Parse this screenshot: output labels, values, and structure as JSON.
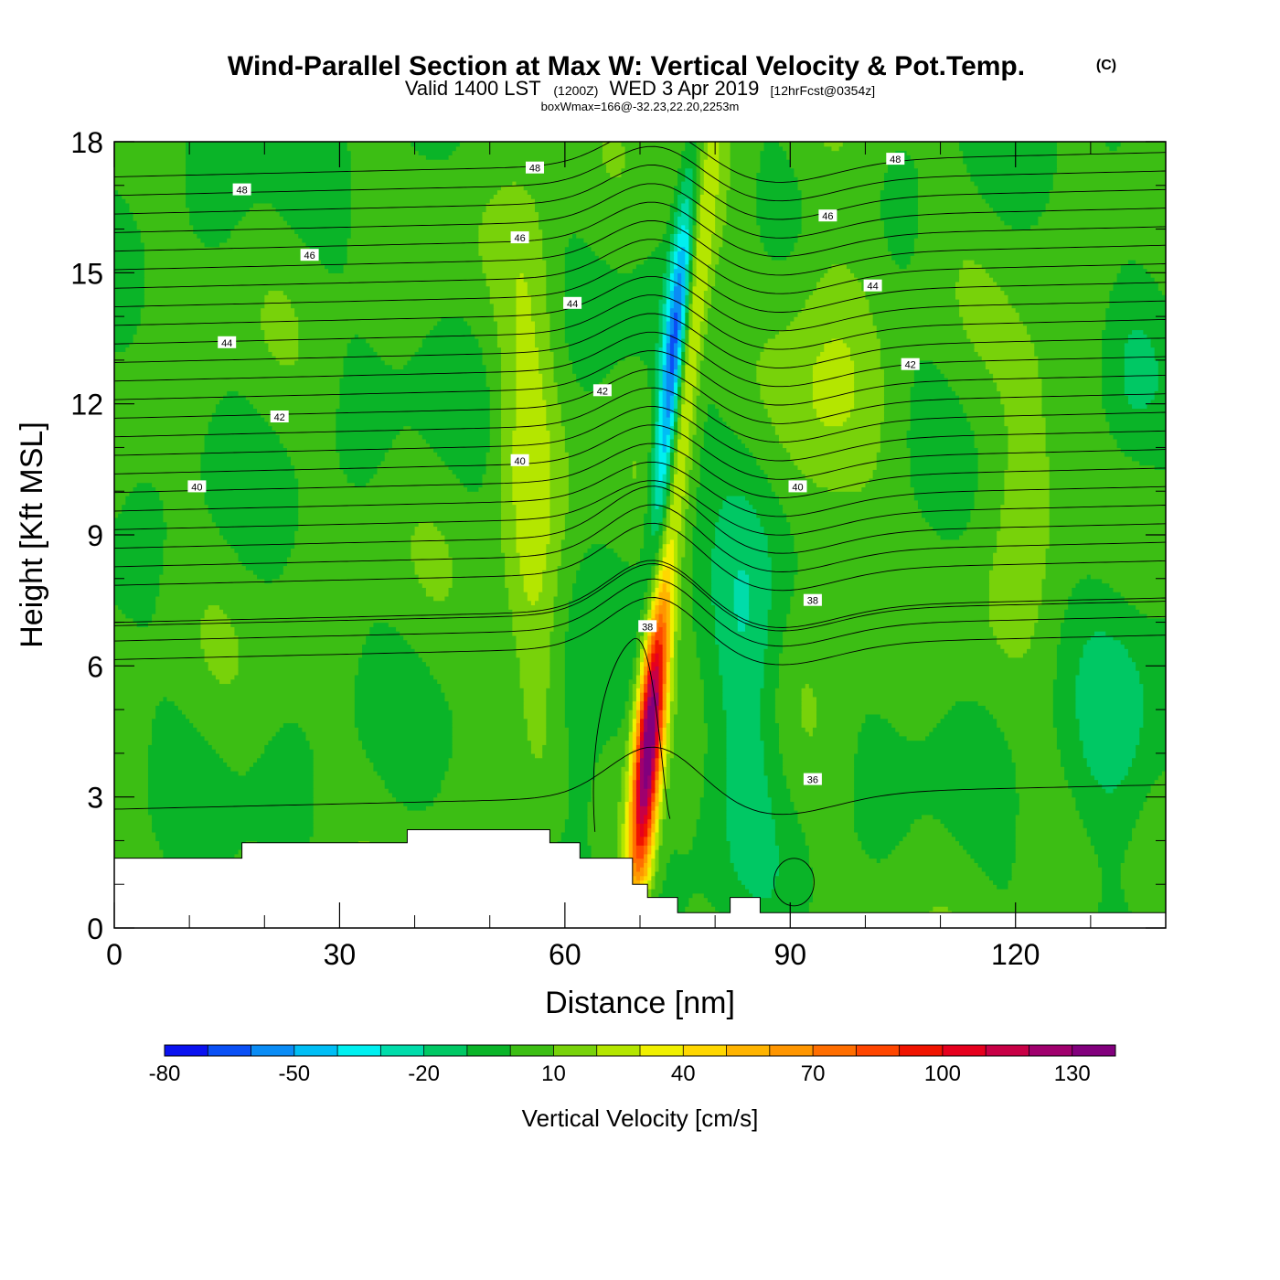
{
  "chart_data": {
    "type": "heatmap",
    "title": "Wind-Parallel Section at Max W: Vertical Velocity & Pot.Temp.",
    "title_mark": "(C)",
    "subtitle_main": "Valid 1400 LST",
    "subtitle_z": "(1200Z)",
    "subtitle_date": "WED 3 Apr 2019",
    "subtitle_fcst": "[12hrFcst@0354z]",
    "subtitle2": "boxWmax=166@-32.23,22.20,2253m",
    "xlabel": "Distance [nm]",
    "ylabel": "Height [Kft MSL]",
    "xlim": [
      0,
      140
    ],
    "ylim": [
      0,
      18
    ],
    "x_ticks": [
      0,
      30,
      60,
      90,
      120
    ],
    "x_minor_step": 10,
    "y_ticks": [
      0,
      3,
      6,
      9,
      12,
      15,
      18
    ],
    "y_minor_step": 1,
    "colorbar": {
      "label": "Vertical Velocity [cm/s]",
      "levels": [
        -80,
        -70,
        -60,
        -50,
        -40,
        -30,
        -20,
        -10,
        0,
        10,
        20,
        30,
        40,
        50,
        60,
        70,
        80,
        90,
        100,
        110,
        120,
        130,
        140
      ],
      "tick_labels": [
        "-80",
        "-50",
        "-20",
        "10",
        "40",
        "70",
        "100",
        "130"
      ],
      "tick_values": [
        -80,
        -50,
        -20,
        10,
        40,
        70,
        100,
        130
      ],
      "colors": [
        "#0a12f0",
        "#0a50f5",
        "#0a8cf5",
        "#00bef5",
        "#00f0f0",
        "#00dcaa",
        "#00c864",
        "#0ab428",
        "#3cbe14",
        "#78d20a",
        "#b4e600",
        "#f0f000",
        "#ffd700",
        "#ffb400",
        "#ff9600",
        "#ff6e00",
        "#ff4600",
        "#f01400",
        "#e6001e",
        "#c80046",
        "#a0006e",
        "#82007d"
      ]
    },
    "wmax": 166,
    "terrain_kft": [
      [
        0,
        1.6
      ],
      [
        17,
        1.6
      ],
      [
        17,
        1.95
      ],
      [
        39,
        1.95
      ],
      [
        39,
        2.25
      ],
      [
        58,
        2.25
      ],
      [
        58,
        1.95
      ],
      [
        62,
        1.95
      ],
      [
        62,
        1.6
      ],
      [
        69,
        1.6
      ],
      [
        69,
        1.0
      ],
      [
        71,
        1.0
      ],
      [
        71,
        0.7
      ],
      [
        75,
        0.7
      ],
      [
        75,
        0.35
      ],
      [
        82,
        0.35
      ],
      [
        82,
        0.7
      ],
      [
        86,
        0.7
      ],
      [
        86,
        0.35
      ],
      [
        140,
        0.35
      ]
    ],
    "theta_levels": [
      36,
      38,
      40,
      42,
      44,
      46,
      48
    ],
    "theta_labels": [
      {
        "text": "48",
        "x": 17,
        "y": 16.9
      },
      {
        "text": "48",
        "x": 56,
        "y": 17.4
      },
      {
        "text": "48",
        "x": 104,
        "y": 17.6
      },
      {
        "text": "46",
        "x": 26,
        "y": 15.4
      },
      {
        "text": "46",
        "x": 54,
        "y": 15.8
      },
      {
        "text": "46",
        "x": 95,
        "y": 16.3
      },
      {
        "text": "44",
        "x": 15,
        "y": 13.4
      },
      {
        "text": "44",
        "x": 61,
        "y": 14.3
      },
      {
        "text": "44",
        "x": 101,
        "y": 14.7
      },
      {
        "text": "42",
        "x": 22,
        "y": 11.7
      },
      {
        "text": "42",
        "x": 65,
        "y": 12.3
      },
      {
        "text": "42",
        "x": 106,
        "y": 12.9
      },
      {
        "text": "40",
        "x": 11,
        "y": 10.1
      },
      {
        "text": "40",
        "x": 54,
        "y": 10.7
      },
      {
        "text": "40",
        "x": 91,
        "y": 10.1
      },
      {
        "text": "38",
        "x": 71,
        "y": 6.9
      },
      {
        "text": "38",
        "x": 93,
        "y": 7.5
      },
      {
        "text": "36",
        "x": 93,
        "y": 3.4
      }
    ]
  }
}
